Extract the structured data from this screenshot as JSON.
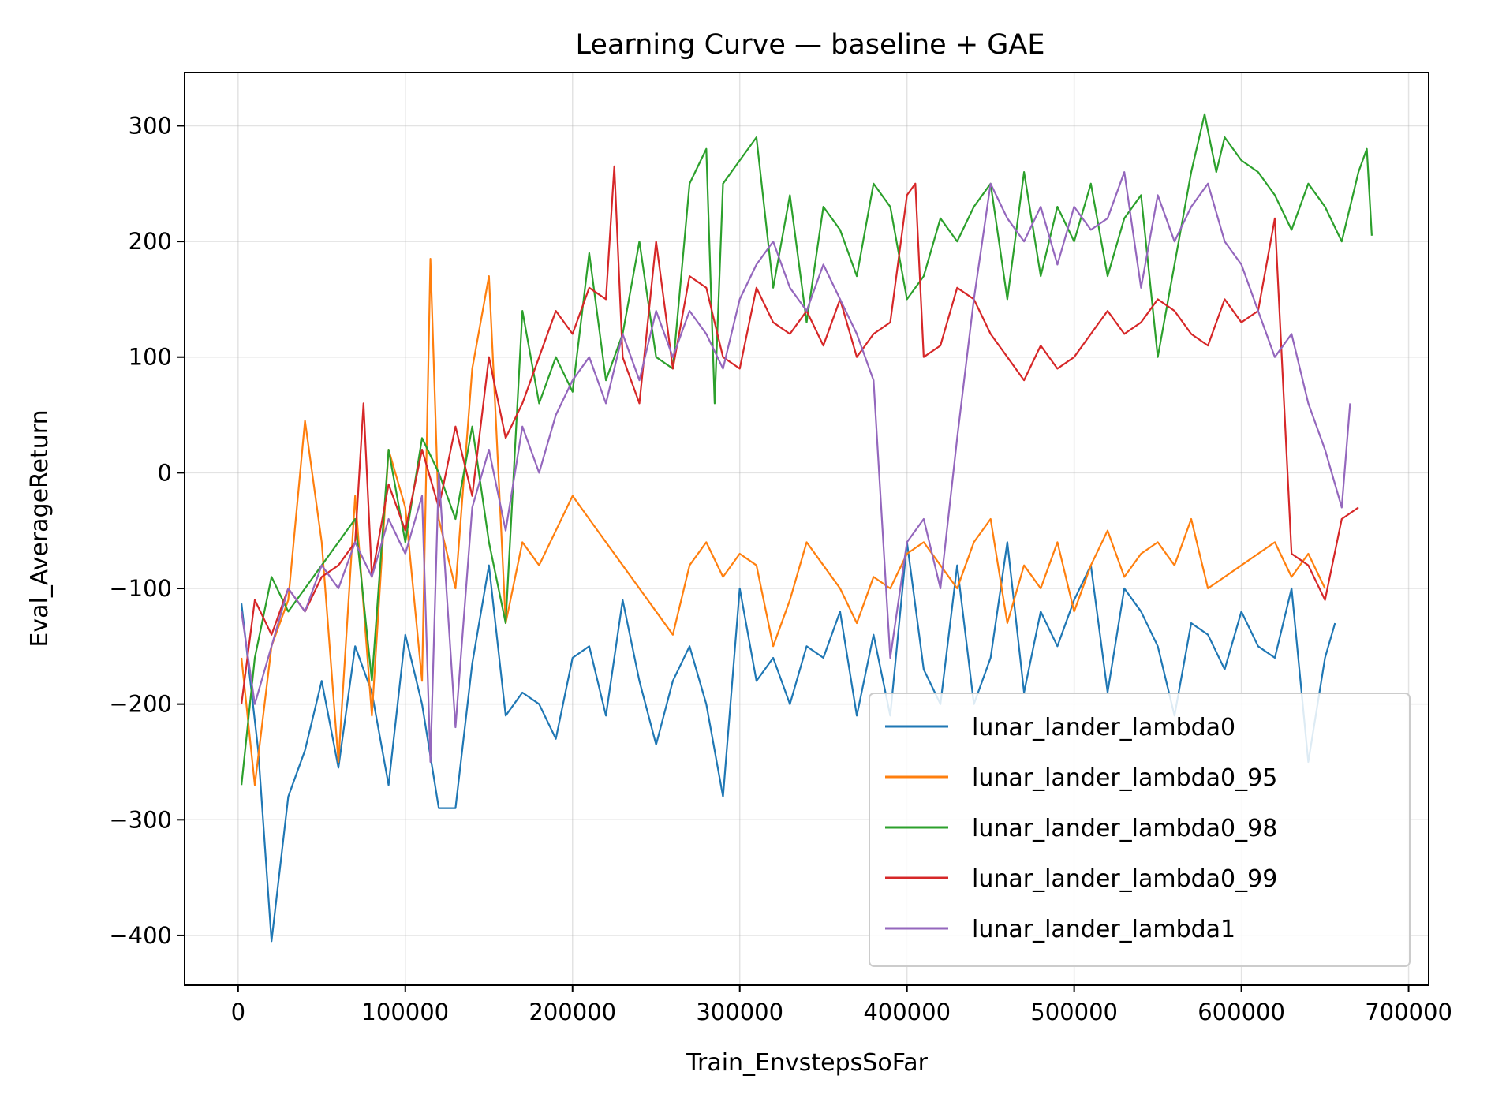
{
  "chart_data": {
    "type": "line",
    "title": "Learning Curve — baseline + GAE",
    "xlabel": "Train_EnvstepsSoFar",
    "ylabel": "Eval_AverageReturn",
    "xlim": [
      -32000,
      712000
    ],
    "ylim": [
      -443,
      346
    ],
    "xticks": [
      0,
      100000,
      200000,
      300000,
      400000,
      500000,
      600000,
      700000
    ],
    "xtick_labels": [
      "0",
      "100000",
      "200000",
      "300000",
      "400000",
      "500000",
      "600000",
      "700000"
    ],
    "yticks": [
      -400,
      -300,
      -200,
      -100,
      0,
      100,
      200,
      300
    ],
    "ytick_labels": [
      "−400",
      "−300",
      "−200",
      "−100",
      "0",
      "100",
      "200",
      "300"
    ],
    "grid": true,
    "legend_position": "lower right",
    "series": [
      {
        "name": "lunar_lander_lambda0",
        "color": "#1f77b4",
        "x": [
          2000,
          12000,
          20000,
          30000,
          40000,
          50000,
          60000,
          70000,
          80000,
          90000,
          100000,
          110000,
          120000,
          130000,
          140000,
          150000,
          160000,
          170000,
          180000,
          190000,
          200000,
          210000,
          220000,
          230000,
          240000,
          250000,
          260000,
          270000,
          280000,
          290000,
          300000,
          310000,
          320000,
          330000,
          340000,
          350000,
          360000,
          370000,
          380000,
          390000,
          400000,
          410000,
          420000,
          430000,
          440000,
          450000,
          460000,
          470000,
          480000,
          490000,
          500000,
          510000,
          520000,
          530000,
          540000,
          550000,
          560000,
          570000,
          580000,
          590000,
          600000,
          610000,
          620000,
          630000,
          640000,
          650000,
          656000
        ],
        "y": [
          -113,
          -240,
          -405,
          -280,
          -240,
          -180,
          -255,
          -150,
          -190,
          -270,
          -140,
          -200,
          -290,
          -290,
          -165,
          -80,
          -210,
          -190,
          -200,
          -230,
          -160,
          -150,
          -210,
          -110,
          -180,
          -235,
          -180,
          -150,
          -200,
          -280,
          -100,
          -180,
          -160,
          -200,
          -150,
          -160,
          -120,
          -210,
          -140,
          -210,
          -60,
          -170,
          -200,
          -80,
          -200,
          -160,
          -60,
          -190,
          -120,
          -150,
          -110,
          -80,
          -190,
          -100,
          -120,
          -150,
          -210,
          -130,
          -140,
          -170,
          -120,
          -150,
          -160,
          -100,
          -250,
          -160,
          -130
        ]
      },
      {
        "name": "lunar_lander_lambda0_95",
        "color": "#ff7f0e",
        "x": [
          2000,
          10000,
          20000,
          30000,
          40000,
          50000,
          60000,
          70000,
          80000,
          90000,
          100000,
          110000,
          115000,
          120000,
          130000,
          140000,
          150000,
          160000,
          170000,
          180000,
          190000,
          200000,
          210000,
          220000,
          230000,
          240000,
          250000,
          260000,
          270000,
          280000,
          290000,
          300000,
          310000,
          320000,
          330000,
          340000,
          350000,
          360000,
          370000,
          380000,
          390000,
          400000,
          410000,
          420000,
          430000,
          440000,
          450000,
          460000,
          470000,
          480000,
          490000,
          500000,
          510000,
          520000,
          530000,
          540000,
          550000,
          560000,
          570000,
          580000,
          590000,
          600000,
          610000,
          620000,
          630000,
          640000,
          650000
        ],
        "y": [
          -160,
          -270,
          -150,
          -110,
          45,
          -60,
          -250,
          -20,
          -210,
          20,
          -30,
          -180,
          185,
          -40,
          -100,
          90,
          170,
          -130,
          -60,
          -80,
          -50,
          -20,
          -40,
          -60,
          -80,
          -100,
          -120,
          -140,
          -80,
          -60,
          -90,
          -70,
          -80,
          -150,
          -110,
          -60,
          -80,
          -100,
          -130,
          -90,
          -100,
          -70,
          -60,
          -80,
          -100,
          -60,
          -40,
          -130,
          -80,
          -100,
          -60,
          -120,
          -80,
          -50,
          -90,
          -70,
          -60,
          -80,
          -40,
          -100,
          -90,
          -80,
          -70,
          -60,
          -90,
          -70,
          -100
        ]
      },
      {
        "name": "lunar_lander_lambda0_98",
        "color": "#2ca02c",
        "x": [
          2000,
          10000,
          20000,
          30000,
          40000,
          50000,
          60000,
          70000,
          80000,
          90000,
          100000,
          110000,
          120000,
          130000,
          140000,
          150000,
          160000,
          170000,
          180000,
          190000,
          200000,
          210000,
          220000,
          230000,
          240000,
          250000,
          260000,
          270000,
          280000,
          285000,
          290000,
          300000,
          310000,
          320000,
          330000,
          340000,
          350000,
          360000,
          370000,
          380000,
          390000,
          400000,
          410000,
          420000,
          430000,
          440000,
          450000,
          460000,
          470000,
          480000,
          490000,
          500000,
          510000,
          520000,
          530000,
          540000,
          550000,
          560000,
          570000,
          578000,
          585000,
          590000,
          600000,
          610000,
          620000,
          630000,
          640000,
          650000,
          660000,
          670000,
          675000,
          678000
        ],
        "y": [
          -270,
          -160,
          -90,
          -120,
          -100,
          -80,
          -60,
          -40,
          -180,
          20,
          -60,
          30,
          0,
          -40,
          40,
          -60,
          -130,
          140,
          60,
          100,
          70,
          190,
          80,
          120,
          200,
          100,
          90,
          250,
          280,
          60,
          250,
          270,
          290,
          160,
          240,
          130,
          230,
          210,
          170,
          250,
          230,
          150,
          170,
          220,
          200,
          230,
          250,
          150,
          260,
          170,
          230,
          200,
          250,
          170,
          220,
          240,
          100,
          180,
          260,
          310,
          260,
          290,
          270,
          260,
          240,
          210,
          250,
          230,
          200,
          260,
          280,
          205
        ]
      },
      {
        "name": "lunar_lander_lambda0_99",
        "color": "#d62728",
        "x": [
          2000,
          10000,
          20000,
          30000,
          40000,
          50000,
          60000,
          70000,
          75000,
          80000,
          90000,
          100000,
          110000,
          120000,
          130000,
          140000,
          150000,
          160000,
          170000,
          180000,
          190000,
          200000,
          210000,
          220000,
          225000,
          230000,
          240000,
          250000,
          260000,
          270000,
          280000,
          290000,
          300000,
          310000,
          320000,
          330000,
          340000,
          350000,
          360000,
          370000,
          380000,
          390000,
          400000,
          405000,
          410000,
          420000,
          430000,
          440000,
          450000,
          460000,
          470000,
          480000,
          490000,
          500000,
          510000,
          520000,
          530000,
          540000,
          550000,
          560000,
          570000,
          580000,
          590000,
          600000,
          610000,
          620000,
          630000,
          640000,
          650000,
          660000,
          670000
        ],
        "y": [
          -200,
          -110,
          -140,
          -100,
          -120,
          -90,
          -80,
          -60,
          60,
          -90,
          -10,
          -50,
          20,
          -30,
          40,
          -20,
          100,
          30,
          60,
          100,
          140,
          120,
          160,
          150,
          265,
          100,
          60,
          200,
          90,
          170,
          160,
          100,
          90,
          160,
          130,
          120,
          140,
          110,
          150,
          100,
          120,
          130,
          240,
          250,
          100,
          110,
          160,
          150,
          120,
          100,
          80,
          110,
          90,
          100,
          120,
          140,
          120,
          130,
          150,
          140,
          120,
          110,
          150,
          130,
          140,
          220,
          -70,
          -80,
          -110,
          -40,
          -30
        ]
      },
      {
        "name": "lunar_lander_lambda1",
        "color": "#9467bd",
        "x": [
          2000,
          10000,
          20000,
          30000,
          40000,
          50000,
          60000,
          70000,
          80000,
          90000,
          100000,
          110000,
          115000,
          120000,
          130000,
          140000,
          150000,
          160000,
          170000,
          180000,
          190000,
          200000,
          210000,
          220000,
          230000,
          240000,
          250000,
          260000,
          270000,
          280000,
          290000,
          300000,
          310000,
          320000,
          330000,
          340000,
          350000,
          360000,
          370000,
          380000,
          390000,
          400000,
          410000,
          420000,
          430000,
          440000,
          450000,
          460000,
          470000,
          480000,
          490000,
          500000,
          510000,
          520000,
          530000,
          540000,
          550000,
          560000,
          570000,
          580000,
          590000,
          600000,
          610000,
          620000,
          630000,
          640000,
          650000,
          660000,
          665000
        ],
        "y": [
          -120,
          -200,
          -150,
          -100,
          -120,
          -80,
          -100,
          -60,
          -90,
          -40,
          -70,
          -20,
          -250,
          0,
          -220,
          -30,
          20,
          -50,
          40,
          0,
          50,
          80,
          100,
          60,
          120,
          80,
          140,
          100,
          140,
          120,
          90,
          150,
          180,
          200,
          160,
          140,
          180,
          150,
          120,
          80,
          -160,
          -60,
          -40,
          -100,
          30,
          150,
          250,
          220,
          200,
          230,
          180,
          230,
          210,
          220,
          260,
          160,
          240,
          200,
          230,
          250,
          200,
          180,
          140,
          100,
          120,
          60,
          20,
          -30,
          60
        ]
      }
    ]
  }
}
